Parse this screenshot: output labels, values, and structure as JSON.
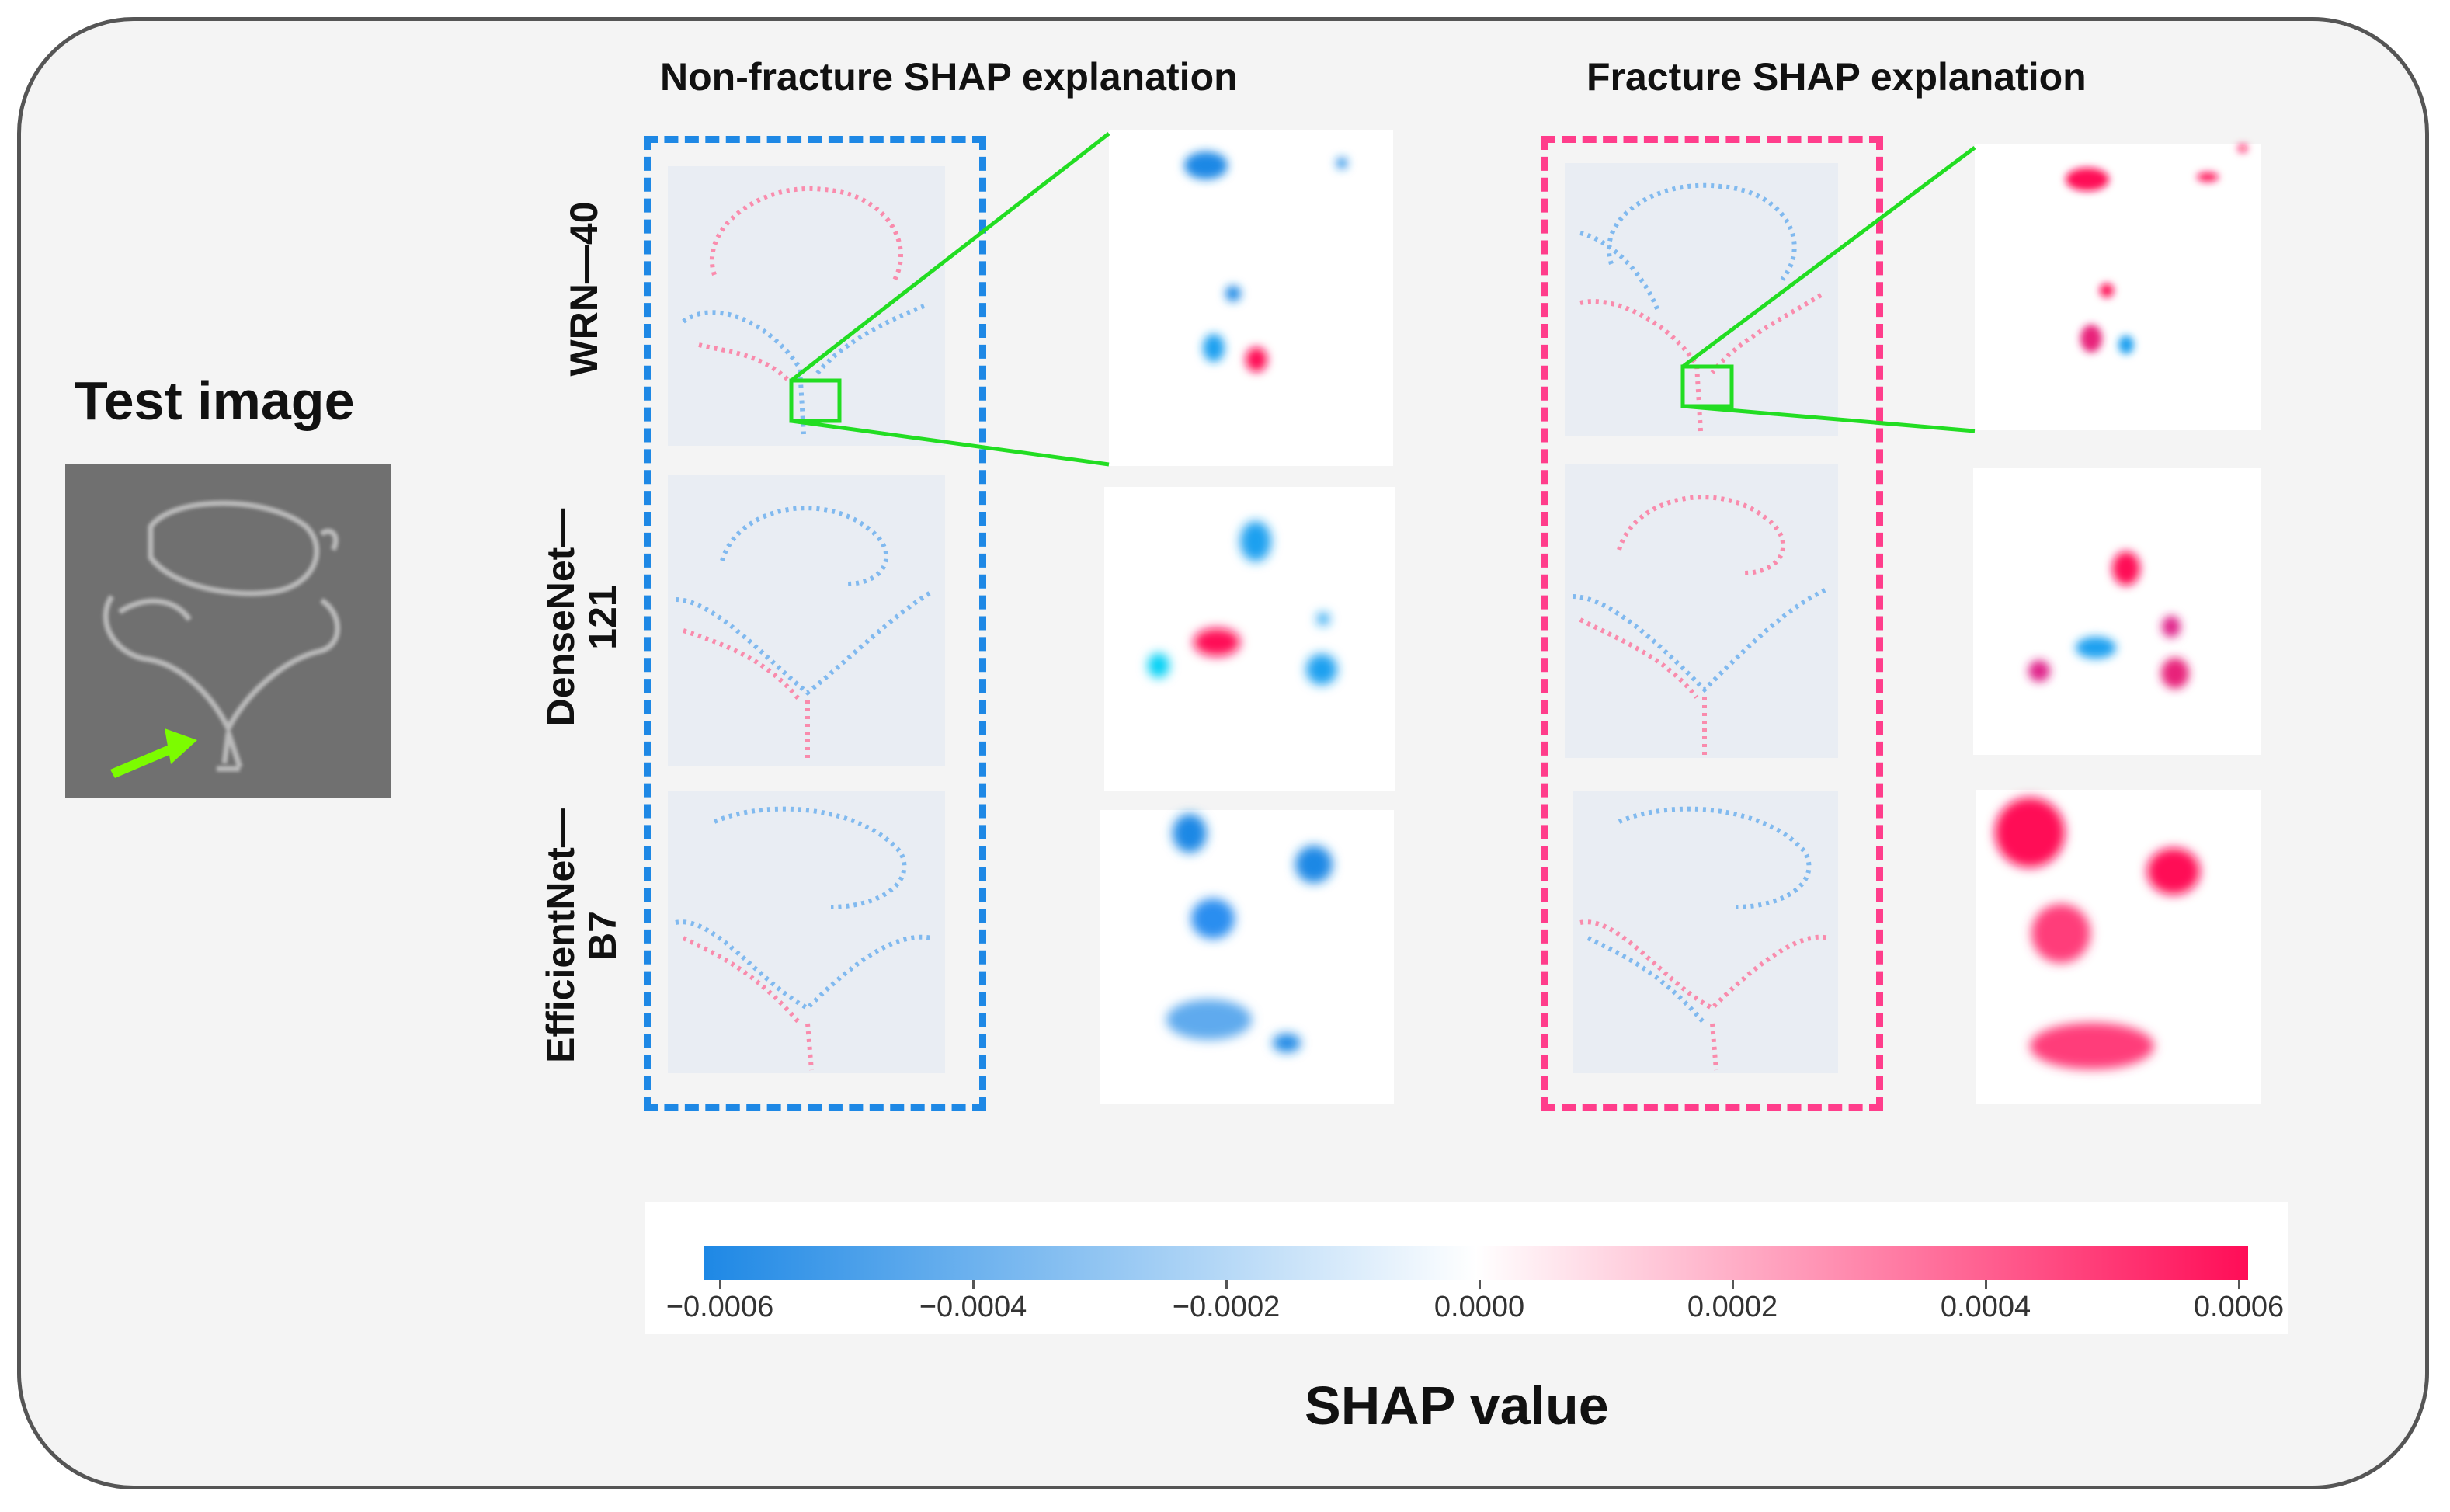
{
  "left_title": "Test image",
  "col_titles": {
    "non_fracture": "Non-fracture SHAP explanation",
    "fracture": "Fracture SHAP explanation"
  },
  "rows": [
    {
      "id": "wrn",
      "label_line1": "WRN—40",
      "label_line2": ""
    },
    {
      "id": "densenet",
      "label_line1": "DenseNet—",
      "label_line2": "121"
    },
    {
      "id": "efficientnet",
      "label_line1": "EfficientNet—",
      "label_line2": "B7"
    }
  ],
  "colorbar": {
    "title": "SHAP value",
    "ticks": [
      "−0.0006",
      "−0.0004",
      "−0.0002",
      "0.0000",
      "0.0002",
      "0.0004",
      "0.0006"
    ],
    "negative_color": "#1e88e5",
    "positive_color": "#ff0d57"
  },
  "colors": {
    "non_fracture_box": "#1e88e5",
    "fracture_box": "#ff3d8b",
    "zoom_highlight": "#22dd22",
    "arrow": "#7cfc00"
  }
}
